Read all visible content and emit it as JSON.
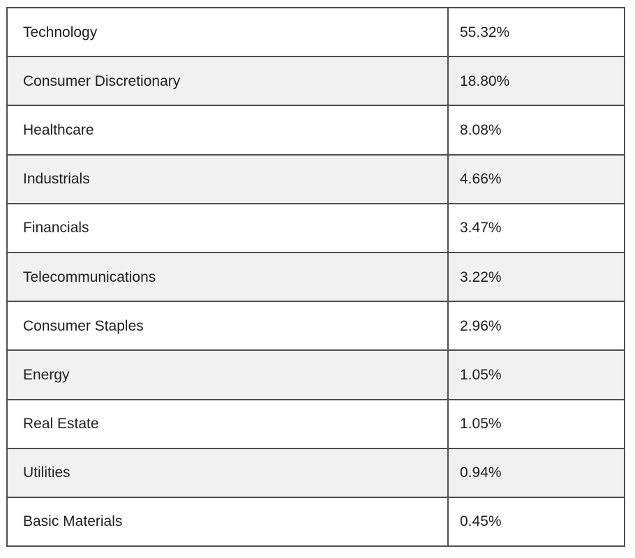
{
  "colors": {
    "background": "#ffffff",
    "row_alt": "#f1f1f1",
    "border": "#4e4e4e",
    "text": "#1e1e1e"
  },
  "chart_data": {
    "type": "table",
    "categories": [
      "Technology",
      "Consumer Discretionary",
      "Healthcare",
      "Industrials",
      "Financials",
      "Telecommunications",
      "Consumer Staples",
      "Energy",
      "Real Estate",
      "Utilities",
      "Basic Materials"
    ],
    "values": [
      55.32,
      18.8,
      8.08,
      4.66,
      3.47,
      3.22,
      2.96,
      1.05,
      1.05,
      0.94,
      0.45
    ],
    "rows": [
      {
        "sector": "Technology",
        "weight": "55.32%"
      },
      {
        "sector": "Consumer Discretionary",
        "weight": "18.80%"
      },
      {
        "sector": "Healthcare",
        "weight": "8.08%"
      },
      {
        "sector": "Industrials",
        "weight": "4.66%"
      },
      {
        "sector": "Financials",
        "weight": "3.47%"
      },
      {
        "sector": "Telecommunications",
        "weight": "3.22%"
      },
      {
        "sector": "Consumer Staples",
        "weight": "2.96%"
      },
      {
        "sector": "Energy",
        "weight": "1.05%"
      },
      {
        "sector": "Real Estate",
        "weight": "1.05%"
      },
      {
        "sector": "Utilities",
        "weight": "0.94%"
      },
      {
        "sector": "Basic Materials",
        "weight": "0.45%"
      }
    ]
  }
}
